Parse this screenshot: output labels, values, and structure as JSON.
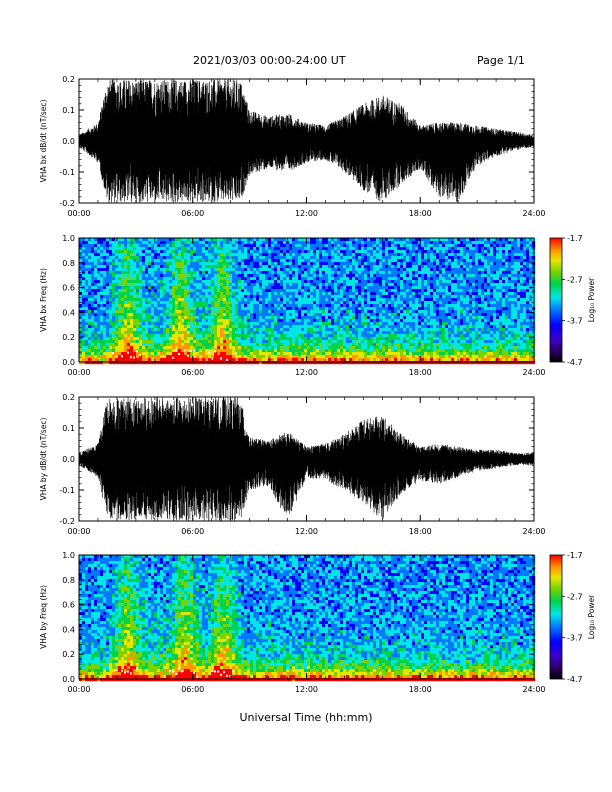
{
  "header": {
    "title": "2021/03/03  00:00-24:00 UT",
    "page": "Page 1/1"
  },
  "x_axis_title": "Universal Time (hh:mm)",
  "x_ticks": [
    "00:00",
    "06:00",
    "12:00",
    "18:00",
    "24:00"
  ],
  "colorbar": {
    "ticks": [
      "-1.7",
      "-2.7",
      "-3.7",
      "-4.7"
    ],
    "label": "Log₁₀ Power"
  },
  "chart_data": [
    {
      "type": "line",
      "id": "bx-waveform",
      "ylabel": "VHA bx dB/dt (nT/sec)",
      "ylim": [
        -0.2,
        0.2
      ],
      "yticks": [
        "0.2",
        "0.1",
        "0.0",
        "-0.1",
        "-0.2"
      ],
      "xlim": [
        "00:00",
        "24:00"
      ],
      "x_hours": [
        0,
        1,
        1.5,
        2,
        3,
        4,
        5,
        6,
        7,
        8,
        8.5,
        9,
        10,
        11,
        12,
        13,
        14,
        15,
        16,
        17,
        18,
        19,
        20,
        21,
        22,
        23,
        24
      ],
      "envelope_max": [
        0.02,
        0.06,
        0.2,
        0.2,
        0.2,
        0.2,
        0.2,
        0.2,
        0.2,
        0.2,
        0.2,
        0.1,
        0.08,
        0.09,
        0.06,
        0.05,
        0.08,
        0.12,
        0.15,
        0.12,
        0.05,
        0.06,
        0.06,
        0.05,
        0.04,
        0.03,
        0.02
      ],
      "envelope_min": [
        -0.02,
        -0.07,
        -0.2,
        -0.2,
        -0.2,
        -0.2,
        -0.2,
        -0.2,
        -0.2,
        -0.2,
        -0.2,
        -0.11,
        -0.09,
        -0.1,
        -0.07,
        -0.06,
        -0.1,
        -0.16,
        -0.2,
        -0.14,
        -0.09,
        -0.18,
        -0.2,
        -0.08,
        -0.05,
        -0.03,
        -0.02
      ]
    },
    {
      "type": "heatmap",
      "id": "bx-spectrogram",
      "ylabel": "VHA bx Freq (Hz)",
      "ylim": [
        0,
        1
      ],
      "yticks": [
        "1.0",
        "0.8",
        "0.6",
        "0.4",
        "0.2",
        "0.0"
      ],
      "xlim": [
        "00:00",
        "24:00"
      ],
      "zlim": [
        -4.7,
        -1.7
      ],
      "zlabel": "Log10 Power",
      "colormap": [
        "#000000",
        "#2a005a",
        "#3c00c8",
        "#0000ff",
        "#0078ff",
        "#00e6e6",
        "#00d24a",
        "#7ad200",
        "#e6e600",
        "#ff9600",
        "#ff0000"
      ],
      "band_events_hours": [
        2.5,
        5.3,
        7.5
      ],
      "description_level": "log10 power vs time and frequency"
    },
    {
      "type": "line",
      "id": "by-waveform",
      "ylabel": "VHA by dB/dt (nT/sec)",
      "ylim": [
        -0.2,
        0.2
      ],
      "yticks": [
        "0.2",
        "0.1",
        "0.0",
        "-0.1",
        "-0.2"
      ],
      "xlim": [
        "00:00",
        "24:00"
      ],
      "x_hours": [
        0,
        1,
        1.5,
        2,
        3,
        4,
        5,
        6,
        7,
        8,
        8.5,
        9,
        10,
        11,
        12,
        13,
        14,
        15,
        16,
        17,
        18,
        19,
        20,
        21,
        22,
        23,
        24
      ],
      "envelope_max": [
        0.02,
        0.05,
        0.2,
        0.2,
        0.2,
        0.2,
        0.2,
        0.2,
        0.2,
        0.2,
        0.2,
        0.07,
        0.06,
        0.09,
        0.04,
        0.05,
        0.08,
        0.13,
        0.14,
        0.08,
        0.04,
        0.05,
        0.04,
        0.03,
        0.03,
        0.02,
        0.02
      ],
      "envelope_min": [
        -0.02,
        -0.06,
        -0.2,
        -0.2,
        -0.2,
        -0.2,
        -0.2,
        -0.2,
        -0.2,
        -0.2,
        -0.2,
        -0.1,
        -0.09,
        -0.2,
        -0.06,
        -0.07,
        -0.1,
        -0.14,
        -0.2,
        -0.11,
        -0.07,
        -0.08,
        -0.06,
        -0.04,
        -0.03,
        -0.02,
        -0.02
      ]
    },
    {
      "type": "heatmap",
      "id": "by-spectrogram",
      "ylabel": "VHA by Freq (Hz)",
      "ylim": [
        0,
        1
      ],
      "yticks": [
        "1.0",
        "0.8",
        "0.6",
        "0.4",
        "0.2",
        "0.0"
      ],
      "xlim": [
        "00:00",
        "24:00"
      ],
      "zlim": [
        -4.7,
        -1.7
      ],
      "zlabel": "Log10 Power",
      "colormap": [
        "#000000",
        "#2a005a",
        "#3c00c8",
        "#0000ff",
        "#0078ff",
        "#00e6e6",
        "#00d24a",
        "#7ad200",
        "#e6e600",
        "#ff9600",
        "#ff0000"
      ],
      "band_events_hours": [
        2.5,
        5.5,
        7.5
      ],
      "description_level": "log10 power vs time and frequency"
    }
  ]
}
